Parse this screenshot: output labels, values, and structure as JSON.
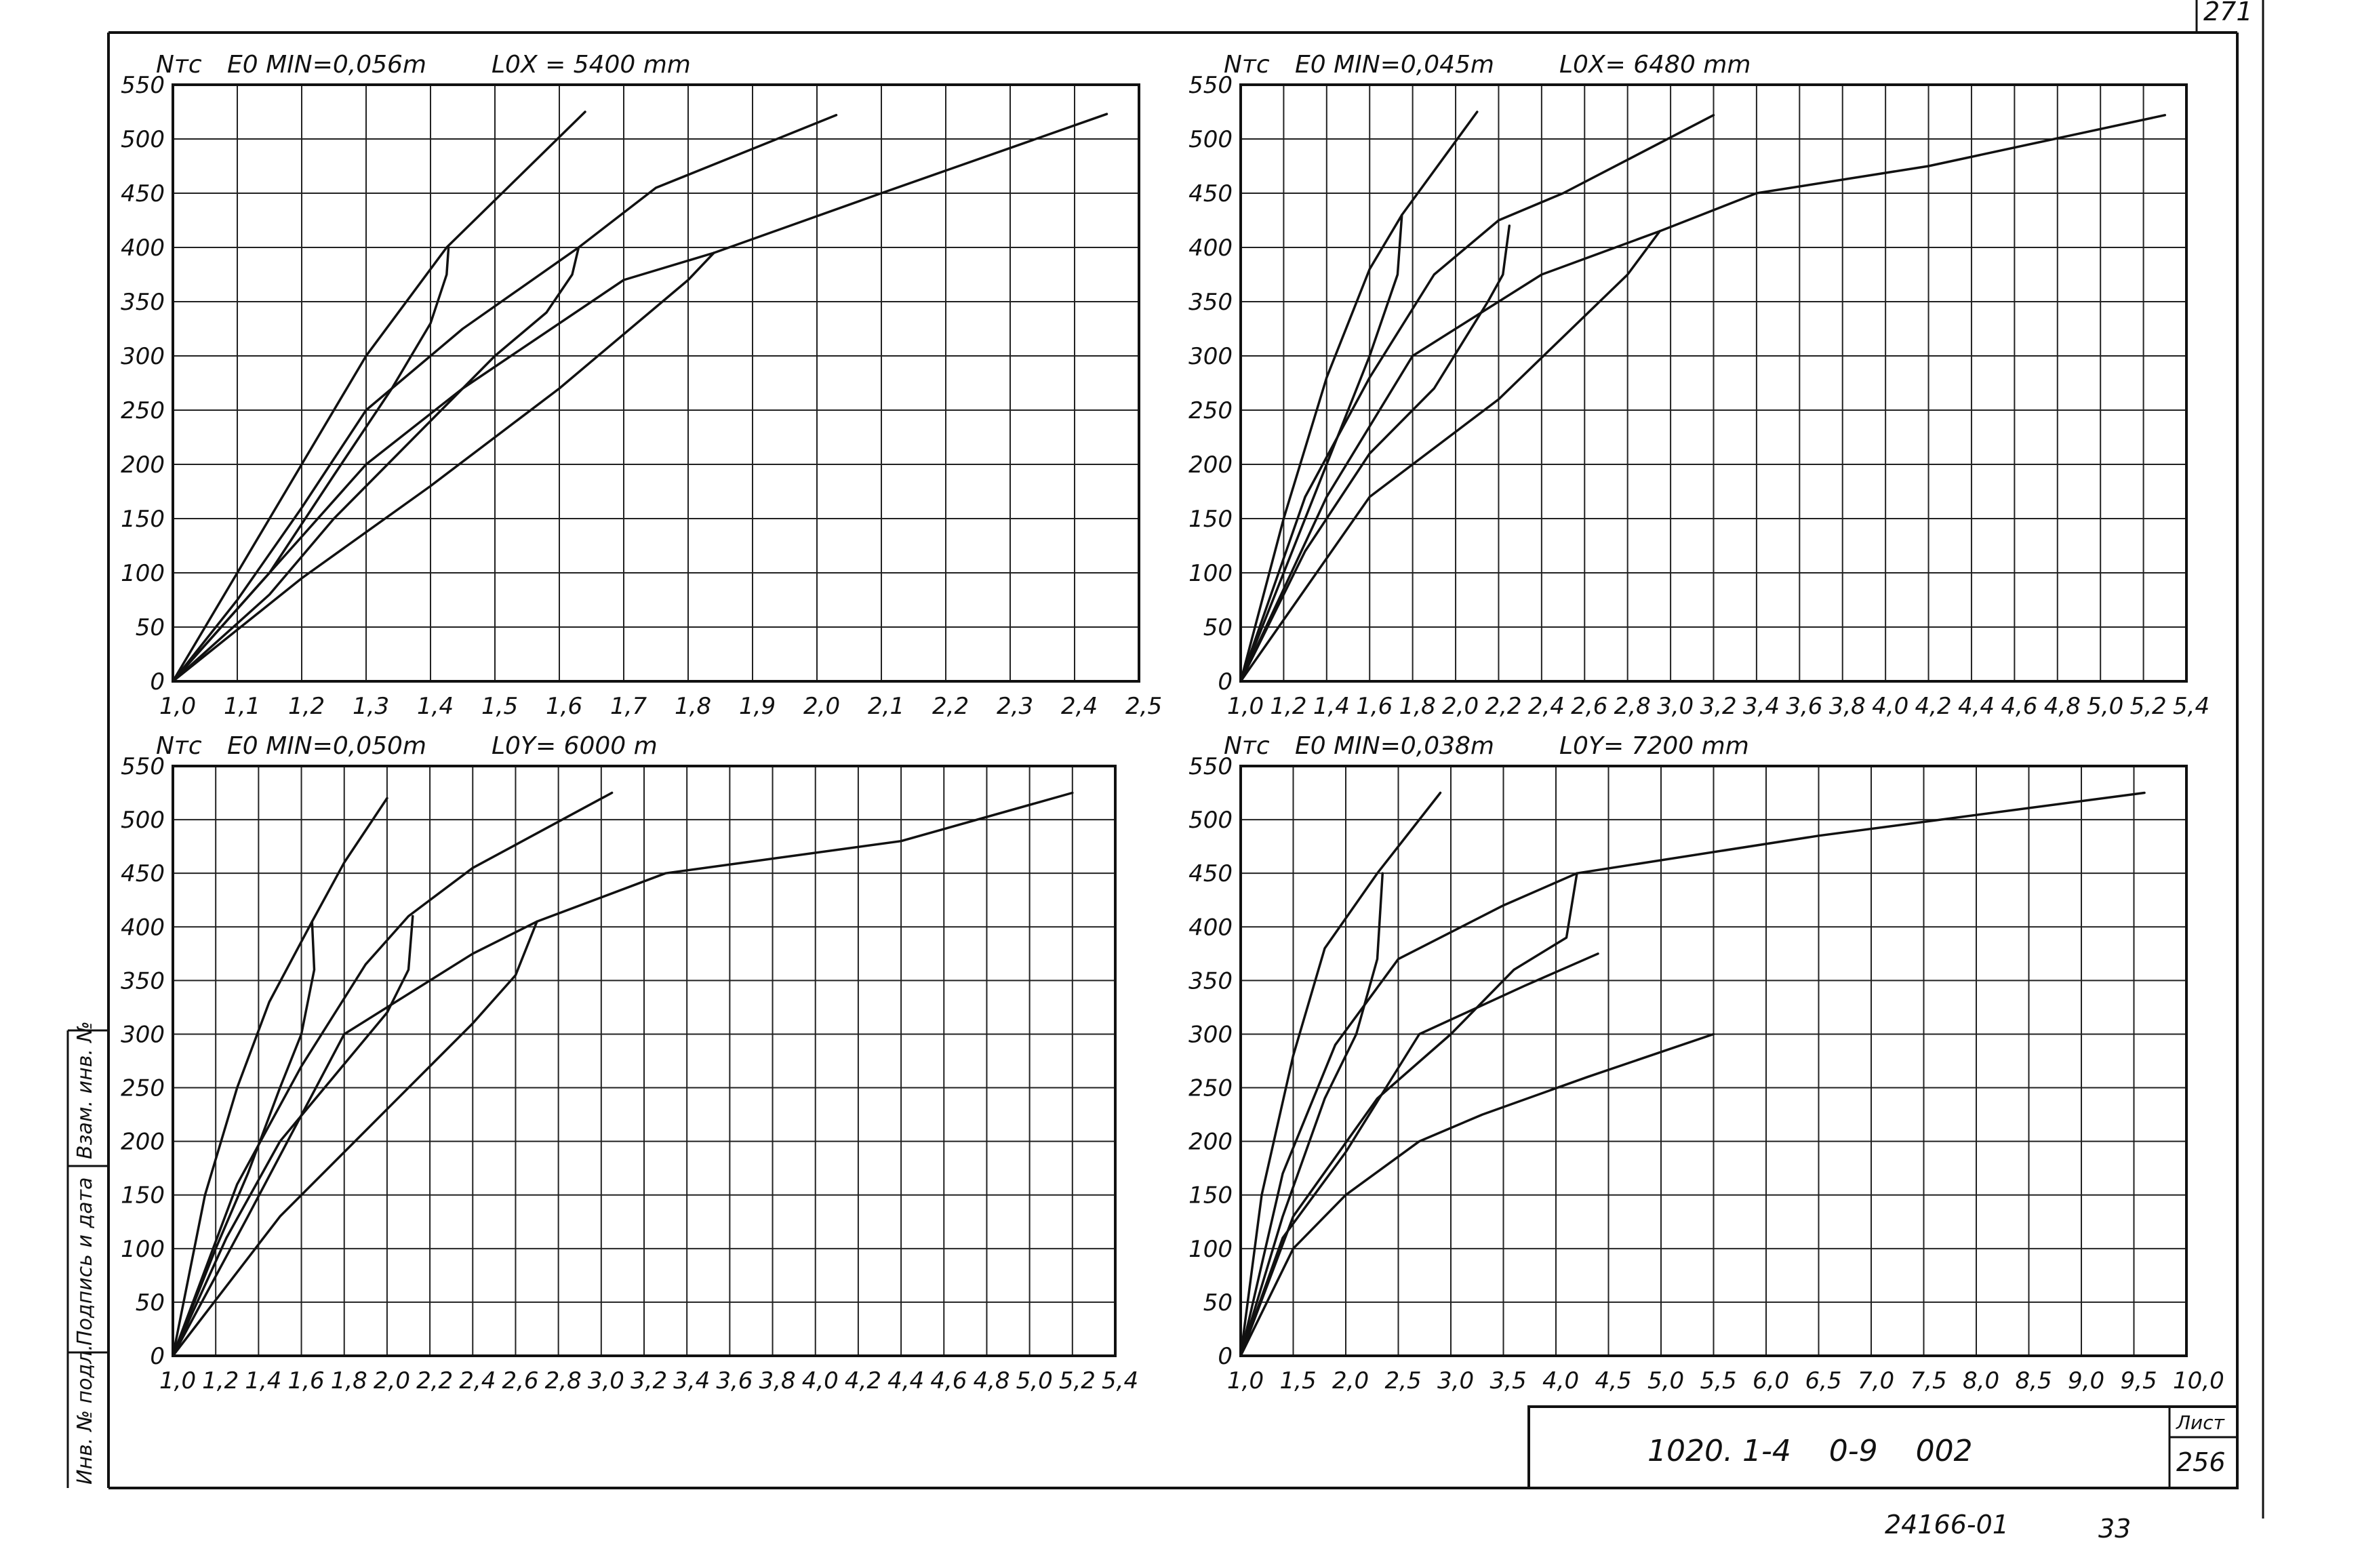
{
  "sheet": {
    "corner_number": "271",
    "stamp_code": "1020. 1-4    0-9    002",
    "list_label": "Лист",
    "list_number": "256",
    "bottom_code": "24166-01",
    "bottom_page": "33",
    "side_labels": [
      "Инв. № подл.",
      "Подпись и дата",
      "Взам. инв. №"
    ]
  },
  "chart_data": [
    {
      "type": "line",
      "ylabel": "Nтс",
      "header_e": "E0 MIN=0,056m",
      "header_l": "L0X = 5400 mm",
      "xlim": [
        1.0,
        2.5
      ],
      "ylim": [
        0,
        550
      ],
      "xticks": [
        1.0,
        1.1,
        1.2,
        1.3,
        1.4,
        1.5,
        1.6,
        1.7,
        1.8,
        1.9,
        2.0,
        2.1,
        2.2,
        2.3,
        2.4,
        2.5
      ],
      "xtick_labels": [
        "1,0",
        "1,1",
        "1,2",
        "1,3",
        "1,4",
        "1,5",
        "1,6",
        "1,7",
        "1,8",
        "1,9",
        "2,0",
        "2,1",
        "2,2",
        "2,3",
        "2,4",
        "2,5"
      ],
      "yticks": [
        0,
        50,
        100,
        150,
        200,
        250,
        300,
        350,
        400,
        450,
        500,
        550
      ],
      "series": [
        {
          "points": [
            [
              1.0,
              0
            ],
            [
              1.1,
              100
            ],
            [
              1.2,
              200
            ],
            [
              1.3,
              300
            ],
            [
              1.425,
              400
            ],
            [
              1.64,
              525
            ]
          ]
        },
        {
          "points": [
            [
              1.0,
              0
            ],
            [
              1.15,
              100
            ],
            [
              1.25,
              190
            ],
            [
              1.34,
              270
            ],
            [
              1.4,
              330
            ],
            [
              1.425,
              375
            ],
            [
              1.428,
              400
            ]
          ]
        },
        {
          "points": [
            [
              1.0,
              0
            ],
            [
              1.1,
              75
            ],
            [
              1.2,
              160
            ],
            [
              1.3,
              250
            ],
            [
              1.45,
              325
            ],
            [
              1.63,
              400
            ],
            [
              1.75,
              455
            ],
            [
              2.03,
              522
            ]
          ]
        },
        {
          "points": [
            [
              1.0,
              0
            ],
            [
              1.15,
              80
            ],
            [
              1.25,
              150
            ],
            [
              1.35,
              210
            ],
            [
              1.5,
              300
            ],
            [
              1.58,
              340
            ],
            [
              1.62,
              375
            ],
            [
              1.63,
              400
            ]
          ]
        },
        {
          "points": [
            [
              1.0,
              0
            ],
            [
              1.15,
              100
            ],
            [
              1.3,
              200
            ],
            [
              1.45,
              270
            ],
            [
              1.7,
              370
            ],
            [
              1.84,
              395
            ],
            [
              2.1,
              450
            ],
            [
              2.45,
              523
            ]
          ]
        },
        {
          "points": [
            [
              1.0,
              0
            ],
            [
              1.2,
              95
            ],
            [
              1.4,
              180
            ],
            [
              1.6,
              270
            ],
            [
              1.8,
              370
            ],
            [
              1.84,
              395
            ]
          ]
        }
      ]
    },
    {
      "type": "line",
      "ylabel": "Nтс",
      "header_e": "E0 MIN=0,045m",
      "header_l": "L0X= 6480 mm",
      "xlim": [
        1.0,
        5.4
      ],
      "ylim": [
        0,
        550
      ],
      "xticks": [
        1.0,
        1.2,
        1.4,
        1.6,
        1.8,
        2.0,
        2.2,
        2.4,
        2.6,
        2.8,
        3.0,
        3.2,
        3.4,
        3.6,
        3.8,
        4.0,
        4.2,
        4.4,
        4.6,
        4.8,
        5.0,
        5.2,
        5.4
      ],
      "xtick_labels": [
        "1,0",
        "1,2",
        "1,4",
        "1,6",
        "1,8",
        "2,0",
        "2,2",
        "2,4",
        "2,6",
        "2,8",
        "3,0",
        "3,2",
        "3,4",
        "3,6",
        "3,8",
        "4,0",
        "4,2",
        "4,4",
        "4,6",
        "4,8",
        "5,0",
        "5,2",
        "5,4"
      ],
      "yticks": [
        0,
        50,
        100,
        150,
        200,
        250,
        300,
        350,
        400,
        450,
        500,
        550
      ],
      "series": [
        {
          "points": [
            [
              1.0,
              0
            ],
            [
              1.2,
              150
            ],
            [
              1.4,
              280
            ],
            [
              1.6,
              380
            ],
            [
              1.75,
              430
            ],
            [
              2.1,
              525
            ]
          ]
        },
        {
          "points": [
            [
              1.0,
              0
            ],
            [
              1.2,
              100
            ],
            [
              1.4,
              200
            ],
            [
              1.6,
              300
            ],
            [
              1.73,
              375
            ],
            [
              1.75,
              430
            ]
          ]
        },
        {
          "points": [
            [
              1.0,
              0
            ],
            [
              1.3,
              170
            ],
            [
              1.6,
              280
            ],
            [
              1.9,
              375
            ],
            [
              2.2,
              425
            ],
            [
              2.5,
              450
            ],
            [
              3.2,
              522
            ]
          ]
        },
        {
          "points": [
            [
              1.0,
              0
            ],
            [
              1.3,
              120
            ],
            [
              1.6,
              210
            ],
            [
              1.9,
              270
            ],
            [
              2.15,
              350
            ],
            [
              2.22,
              375
            ],
            [
              2.25,
              420
            ]
          ]
        },
        {
          "points": [
            [
              1.0,
              0
            ],
            [
              1.4,
              170
            ],
            [
              1.8,
              300
            ],
            [
              2.4,
              375
            ],
            [
              2.95,
              415
            ],
            [
              3.4,
              450
            ],
            [
              4.2,
              475
            ],
            [
              5.3,
              522
            ]
          ]
        },
        {
          "points": [
            [
              1.0,
              0
            ],
            [
              1.6,
              170
            ],
            [
              2.2,
              260
            ],
            [
              2.8,
              375
            ],
            [
              2.95,
              415
            ]
          ]
        }
      ]
    },
    {
      "type": "line",
      "ylabel": "Nтс",
      "header_e": "E0 MIN=0,050m",
      "header_l": "L0Y= 6000 m",
      "xlim": [
        1.0,
        5.4
      ],
      "ylim": [
        0,
        550
      ],
      "xticks": [
        1.0,
        1.2,
        1.4,
        1.6,
        1.8,
        2.0,
        2.2,
        2.4,
        2.6,
        2.8,
        3.0,
        3.2,
        3.4,
        3.6,
        3.8,
        4.0,
        4.2,
        4.4,
        4.6,
        4.8,
        5.0,
        5.2,
        5.4
      ],
      "xtick_labels": [
        "1,0",
        "1,2",
        "1,4",
        "1,6",
        "1,8",
        "2,0",
        "2,2",
        "2,4",
        "2,6",
        "2,8",
        "3,0",
        "3,2",
        "3,4",
        "3,6",
        "3,8",
        "4,0",
        "4,2",
        "4,4",
        "4,6",
        "4,8",
        "5,0",
        "5,2",
        "5,4"
      ],
      "yticks": [
        0,
        50,
        100,
        150,
        200,
        250,
        300,
        350,
        400,
        450,
        500,
        550
      ],
      "series": [
        {
          "points": [
            [
              1.0,
              0
            ],
            [
              1.15,
              150
            ],
            [
              1.3,
              250
            ],
            [
              1.45,
              330
            ],
            [
              1.65,
              405
            ],
            [
              1.8,
              460
            ],
            [
              2.0,
              520
            ]
          ]
        },
        {
          "points": [
            [
              1.0,
              0
            ],
            [
              1.2,
              100
            ],
            [
              1.35,
              170
            ],
            [
              1.5,
              250
            ],
            [
              1.6,
              300
            ],
            [
              1.66,
              360
            ],
            [
              1.65,
              405
            ]
          ]
        },
        {
          "points": [
            [
              1.0,
              0
            ],
            [
              1.3,
              160
            ],
            [
              1.6,
              270
            ],
            [
              1.9,
              365
            ],
            [
              2.1,
              410
            ],
            [
              2.4,
              455
            ],
            [
              3.05,
              525
            ]
          ]
        },
        {
          "points": [
            [
              1.0,
              0
            ],
            [
              1.25,
              110
            ],
            [
              1.5,
              200
            ],
            [
              1.75,
              260
            ],
            [
              2.0,
              320
            ],
            [
              2.1,
              360
            ],
            [
              2.12,
              410
            ]
          ]
        },
        {
          "points": [
            [
              1.0,
              0
            ],
            [
              1.35,
              130
            ],
            [
              1.8,
              300
            ],
            [
              2.4,
              375
            ],
            [
              2.7,
              405
            ],
            [
              3.3,
              450
            ],
            [
              4.4,
              480
            ],
            [
              5.2,
              525
            ]
          ]
        },
        {
          "points": [
            [
              1.0,
              0
            ],
            [
              1.5,
              130
            ],
            [
              2.0,
              230
            ],
            [
              2.4,
              310
            ],
            [
              2.6,
              355
            ],
            [
              2.7,
              405
            ]
          ]
        }
      ]
    },
    {
      "type": "line",
      "ylabel": "Nтс",
      "header_e": "E0 MIN=0,038m",
      "header_l": "L0Y= 7200 mm",
      "xlim": [
        1.0,
        10.0
      ],
      "ylim": [
        0,
        550
      ],
      "xticks": [
        1.0,
        1.5,
        2.0,
        2.5,
        3.0,
        3.5,
        4.0,
        4.5,
        5.0,
        5.5,
        6.0,
        6.5,
        7.0,
        7.5,
        8.0,
        8.5,
        9.0,
        9.5,
        10.0
      ],
      "xtick_labels": [
        "1,0",
        "1,5",
        "2,0",
        "2,5",
        "3,0",
        "3,5",
        "4,0",
        "4,5",
        "5,0",
        "5,5",
        "6,0",
        "6,5",
        "7,0",
        "7,5",
        "8,0",
        "8,5",
        "9,0",
        "9,5",
        "10,0"
      ],
      "yticks": [
        0,
        50,
        100,
        150,
        200,
        250,
        300,
        350,
        400,
        450,
        500,
        550
      ],
      "series": [
        {
          "points": [
            [
              1.0,
              0
            ],
            [
              1.2,
              150
            ],
            [
              1.5,
              280
            ],
            [
              1.8,
              380
            ],
            [
              2.3,
              450
            ],
            [
              2.9,
              525
            ]
          ]
        },
        {
          "points": [
            [
              1.0,
              0
            ],
            [
              1.4,
              130
            ],
            [
              1.8,
              240
            ],
            [
              2.1,
              300
            ],
            [
              2.3,
              370
            ],
            [
              2.35,
              450
            ]
          ]
        },
        {
          "points": [
            [
              1.0,
              0
            ],
            [
              1.4,
              170
            ],
            [
              1.9,
              290
            ],
            [
              2.5,
              370
            ],
            [
              3.5,
              420
            ],
            [
              4.2,
              450
            ],
            [
              6.5,
              485
            ],
            [
              9.6,
              525
            ]
          ]
        },
        {
          "points": [
            [
              1.0,
              0
            ],
            [
              1.5,
              130
            ],
            [
              2.3,
              240
            ],
            [
              3.0,
              300
            ],
            [
              3.6,
              360
            ],
            [
              4.1,
              390
            ],
            [
              4.2,
              450
            ]
          ]
        },
        {
          "points": [
            [
              1.0,
              0
            ],
            [
              1.4,
              110
            ],
            [
              2.0,
              190
            ],
            [
              2.7,
              300
            ],
            [
              3.7,
              345
            ],
            [
              4.4,
              375
            ]
          ]
        },
        {
          "points": [
            [
              1.0,
              0
            ],
            [
              1.5,
              100
            ],
            [
              2.0,
              150
            ],
            [
              2.7,
              200
            ],
            [
              3.3,
              225
            ],
            [
              4.3,
              260
            ],
            [
              5.5,
              300
            ]
          ]
        }
      ]
    }
  ]
}
